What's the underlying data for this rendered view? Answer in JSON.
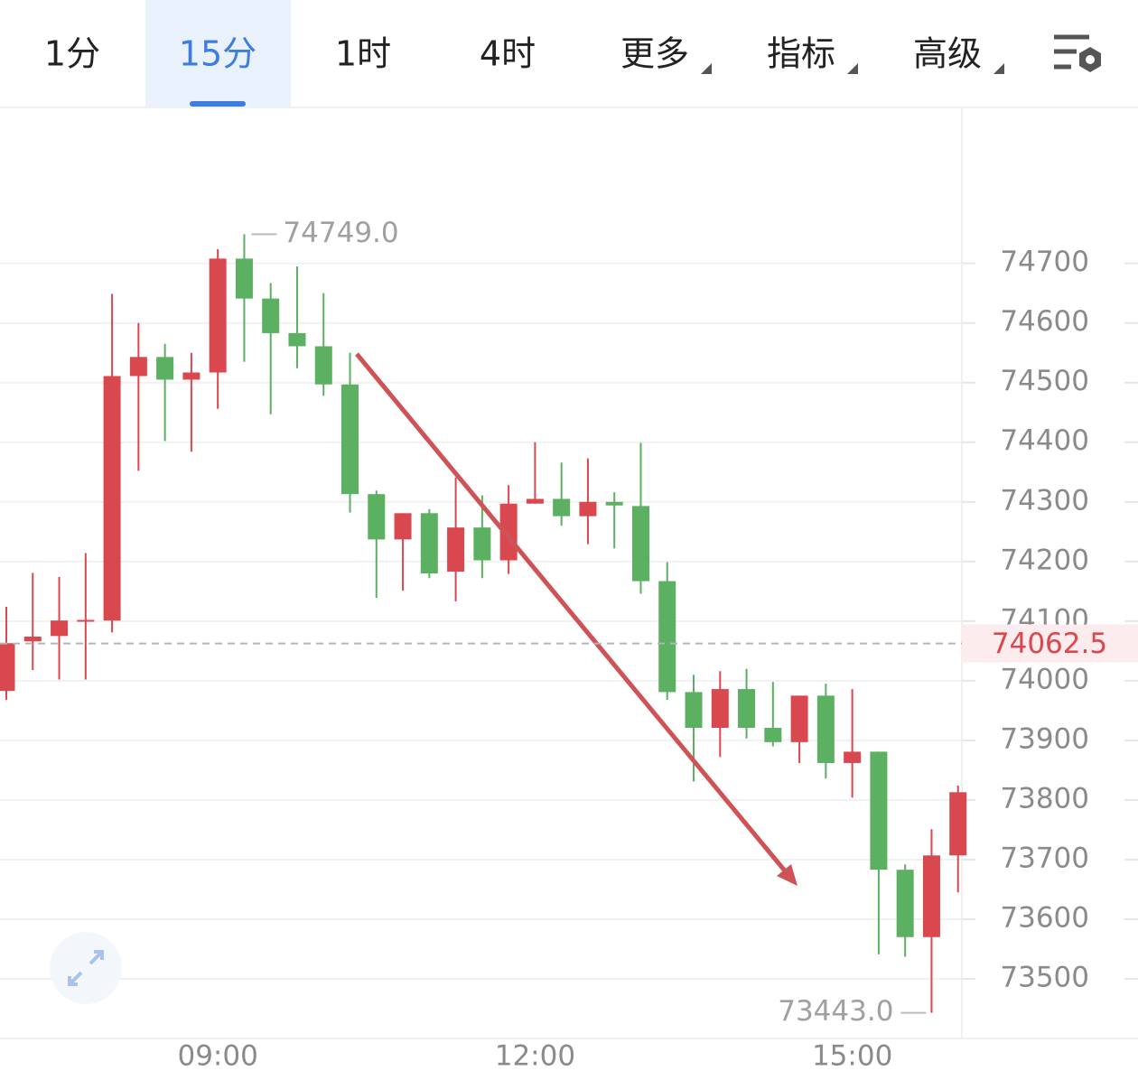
{
  "tabs": [
    "1分",
    "15分",
    "1时",
    "4时",
    "更多",
    "指标",
    "高级"
  ],
  "active_tab": 1,
  "chart_data": {
    "type": "candlestick",
    "categories": [
      null,
      null,
      null,
      null,
      null,
      null,
      null,
      null,
      "09:00",
      null,
      null,
      null,
      null,
      null,
      null,
      null,
      null,
      null,
      null,
      null,
      "12:00",
      null,
      null,
      null,
      null,
      null,
      null,
      null,
      null,
      null,
      null,
      null,
      "15:00",
      null,
      null,
      null,
      null
    ],
    "open": [
      73983,
      74066,
      74075,
      74101,
      74101,
      74511,
      74543,
      74505,
      74517,
      74708,
      74641,
      74583,
      74561,
      74497,
      74313,
      74237,
      74281,
      74183,
      74257,
      74202,
      74297,
      74305,
      74276,
      74300,
      74293,
      74167,
      73981,
      73921,
      73986,
      73921,
      73897,
      73975,
      73862,
      73881,
      73683,
      73570,
      73707
    ],
    "high": [
      74124,
      74181,
      74174,
      74214,
      74649,
      74600,
      74565,
      74550,
      74724,
      74749,
      74667,
      74695,
      74650,
      74550,
      74319,
      74281,
      74288,
      74341,
      74311,
      74328,
      74400,
      74366,
      74373,
      74316,
      74399,
      74199,
      74010,
      74016,
      74020,
      73998,
      73975,
      73995,
      73986,
      73881,
      73692,
      73751,
      73824
    ],
    "low": [
      73968,
      74018,
      74002,
      74002,
      74081,
      74352,
      74402,
      74384,
      74456,
      74535,
      74447,
      74524,
      74478,
      74282,
      74139,
      74151,
      74172,
      74133,
      74172,
      74179,
      74297,
      74260,
      74229,
      74222,
      74146,
      73968,
      73831,
      73872,
      73903,
      73890,
      73862,
      73836,
      73804,
      73541,
      73537,
      73443,
      73645
    ],
    "close": [
      74063,
      74074,
      74101,
      74102,
      74511,
      74543,
      74505,
      74517,
      74708,
      74641,
      74583,
      74561,
      74497,
      74313,
      74237,
      74281,
      74180,
      74257,
      74202,
      74297,
      74305,
      74276,
      74300,
      74294,
      74167,
      73981,
      73921,
      73986,
      73921,
      73897,
      73975,
      73862,
      73881,
      73683,
      73570,
      73707,
      73813
    ],
    "up_color": "#d9474f",
    "down_color": "#5bb062",
    "ylim": [
      73400,
      74960
    ],
    "yticks": [
      73500,
      73600,
      73700,
      73800,
      73900,
      74000,
      74100,
      74200,
      74300,
      74400,
      74500,
      74600,
      74700
    ],
    "grid": true,
    "high_label": {
      "value": 74749,
      "label": "74749.0"
    },
    "low_label": {
      "value": 73443,
      "label": "73443.0"
    },
    "current_price": 74062.5
  }
}
